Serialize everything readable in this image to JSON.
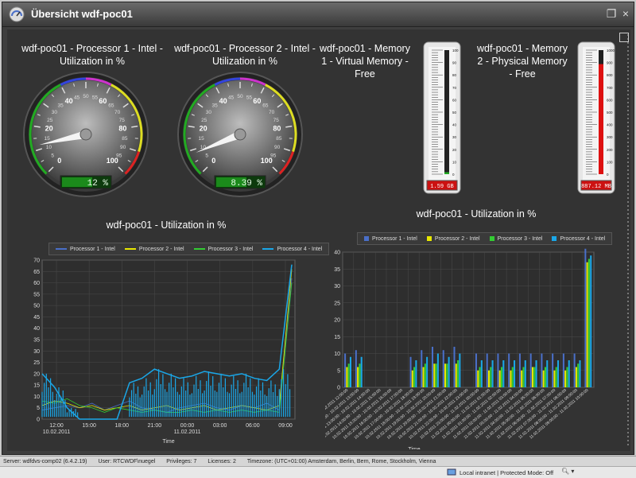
{
  "window": {
    "title": "Übersicht wdf-poc01"
  },
  "panels": {
    "proc1_title": "wdf-poc01 - Processor 1 - Intel - Utilization in %",
    "proc2_title": "wdf-poc01 - Processor 2 - Intel - Utilization in %",
    "mem1_title": "wdf-poc01 - Memory 1 - Virtual Memory - Free",
    "mem2_title": "wdf-poc01 - Memory 2 - Physical Memory - Free",
    "line_title": "wdf-poc01 - Utilization in %",
    "bar_title": "wdf-poc01 - Utilization in %"
  },
  "gauges": [
    {
      "id": "proc1",
      "value": 12,
      "display": "12 %",
      "ticks": [
        "0",
        "5",
        "10",
        "15",
        "20",
        "25",
        "30",
        "35",
        "40",
        "45",
        "50",
        "55",
        "60",
        "65",
        "70",
        "75",
        "80",
        "85",
        "90",
        "95",
        "100"
      ]
    },
    {
      "id": "proc2",
      "value": 8.39,
      "display": "8.39 %",
      "ticks": [
        "0",
        "5",
        "10",
        "15",
        "20",
        "25",
        "30",
        "35",
        "40",
        "45",
        "50",
        "55",
        "60",
        "65",
        "70",
        "75",
        "80",
        "85",
        "90",
        "95",
        "100"
      ]
    }
  ],
  "thermometers": [
    {
      "id": "mem1",
      "value": 1.59,
      "display": "1.59 GB",
      "max": 100,
      "ticks": [
        "100",
        "90",
        "80",
        "70",
        "60",
        "50",
        "40",
        "30",
        "20",
        "10",
        "0"
      ]
    },
    {
      "id": "mem2",
      "value": 887.12,
      "display": "887.12 MB",
      "max": 1000,
      "ticks": [
        "1000",
        "900",
        "800",
        "700",
        "600",
        "500",
        "400",
        "300",
        "200",
        "100",
        "0"
      ]
    }
  ],
  "legend": [
    {
      "name": "Processor 1 - Intel",
      "color": "#4a6fc8"
    },
    {
      "name": "Processor 2 - Intel",
      "color": "#e8e800"
    },
    {
      "name": "Processor 3 - Intel",
      "color": "#33cc33"
    },
    {
      "name": "Processor 4 - Intel",
      "color": "#1aa7e8"
    }
  ],
  "line_chart": {
    "type": "line",
    "ylim": [
      0,
      70
    ],
    "yticks": [
      "0",
      "5",
      "10",
      "15",
      "20",
      "25",
      "30",
      "35",
      "40",
      "45",
      "50",
      "55",
      "60",
      "65",
      "70"
    ],
    "xticks": [
      "12:00",
      "15:00",
      "18:00",
      "21:00",
      "00:00",
      "03:00",
      "06:00",
      "09:00"
    ],
    "xticks_date": [
      "10.02.2011",
      "",
      "",
      "",
      "11.02.2011",
      "",
      "",
      ""
    ],
    "xlabel": "Time",
    "series": [
      {
        "name": "Processor 1 - Intel",
        "values": [
          4,
          5,
          6,
          5,
          7,
          4,
          6,
          8,
          5,
          4,
          3,
          5,
          6,
          7,
          5,
          4,
          6,
          5,
          7,
          4,
          62
        ]
      },
      {
        "name": "Processor 2 - Intel",
        "values": [
          6,
          8,
          7,
          5,
          6,
          4,
          5,
          6,
          4,
          5,
          6,
          4,
          5,
          6,
          4,
          5,
          6,
          5,
          4,
          6,
          66
        ]
      },
      {
        "name": "Processor 3 - Intel",
        "values": [
          8,
          7,
          9,
          6,
          5,
          3,
          5,
          4,
          3,
          4,
          3,
          3,
          4,
          3,
          4,
          3,
          4,
          3,
          4,
          3,
          60
        ]
      },
      {
        "name": "Processor 4 - Intel",
        "values": [
          20,
          14,
          5,
          0,
          0,
          0,
          0,
          16,
          18,
          22,
          20,
          18,
          19,
          21,
          20,
          19,
          20,
          18,
          17,
          22,
          68
        ]
      }
    ]
  },
  "bar_chart": {
    "type": "bar",
    "ylim": [
      0,
      40
    ],
    "yticks": [
      "0",
      "5",
      "10",
      "15",
      "20",
      "25",
      "30",
      "35",
      "40"
    ],
    "xlabel": "Time",
    "categories": [
      "10.02.2011 11:00:00 - 10.02.2011 12:00:00",
      "10.02.2011 12:00:00 - 10.02.2011 13:00:00",
      "10.02.2011 13:00:00 - 10.02.2011 14:00:00",
      "10.02.2011 14:00:00 - 10.02.2011 15:00:00",
      "10.02.2011 15:00:00 - 10.02.2011 16:00:00",
      "10.02.2011 16:00:00 - 10.02.2011 17:00:00",
      "10.02.2011 17:00:00 - 10.02.2011 18:00:00",
      "10.02.2011 18:00:00 - 10.02.2011 19:00:00",
      "10.02.2011 19:00:00 - 10.02.2011 20:00:00",
      "10.02.2011 20:00:00 - 10.02.2011 21:00:00",
      "10.02.2011 21:00:00 - 10.02.2011 22:00:00",
      "10.02.2011 22:00:00 - 10.02.2011 23:00:00",
      "10.02.2011 23:00:00 - 11.02.2011 00:00:00",
      "11.02.2011 00:00:00 - 11.02.2011 01:00:00",
      "11.02.2011 01:00:00 - 11.02.2011 02:00:00",
      "11.02.2011 02:00:00 - 11.02.2011 03:00:00",
      "11.02.2011 03:00:00 - 11.02.2011 04:00:00",
      "11.02.2011 04:00:00 - 11.02.2011 05:00:00",
      "11.02.2011 05:00:00 - 11.02.2011 06:00:00",
      "11.02.2011 06:00:00 - 11.02.2011 07:00:00",
      "11.02.2011 07:00:00 - 11.02.2011 08:00:00",
      "11.02.2011 08:00:00 - 11.02.2011 09:00:00",
      "11.02.2011 09:00:00 - 11.02.2011 10:00:00"
    ],
    "series": [
      {
        "name": "Processor 1 - Intel",
        "values": [
          10,
          11,
          0,
          0,
          0,
          0,
          9,
          11,
          12,
          11,
          12,
          0,
          10,
          10,
          10,
          10,
          10,
          10,
          10,
          10,
          10,
          10,
          41
        ]
      },
      {
        "name": "Processor 2 - Intel",
        "values": [
          6,
          6,
          0,
          0,
          0,
          0,
          5,
          6,
          7,
          7,
          7,
          0,
          5,
          5,
          5,
          5,
          5,
          6,
          5,
          5,
          5,
          6,
          37
        ]
      },
      {
        "name": "Processor 3 - Intel",
        "values": [
          7,
          7,
          0,
          0,
          0,
          0,
          6,
          7,
          7,
          7,
          8,
          0,
          6,
          6,
          6,
          6,
          6,
          6,
          6,
          6,
          6,
          7,
          38
        ]
      },
      {
        "name": "Processor 4 - Intel",
        "values": [
          9,
          9,
          0,
          0,
          0,
          0,
          8,
          9,
          10,
          9,
          10,
          0,
          8,
          8,
          8,
          8,
          8,
          8,
          8,
          8,
          8,
          8,
          39
        ]
      }
    ]
  },
  "status": {
    "server": "Server: wdfdvs-comp02 (6.4.2.19)",
    "user": "User: RTCWDF\\nuegel",
    "privileges": "Privileges: 7",
    "licenses": "Licenses: 2",
    "timezone": "Timezone: (UTC+01:00) Amsterdam, Berlin, Bern, Rome, Stockholm, Vienna"
  },
  "ie": {
    "zone": "Local intranet | Protected Mode: Off",
    "zoom_icon": "magnifier-icon"
  }
}
